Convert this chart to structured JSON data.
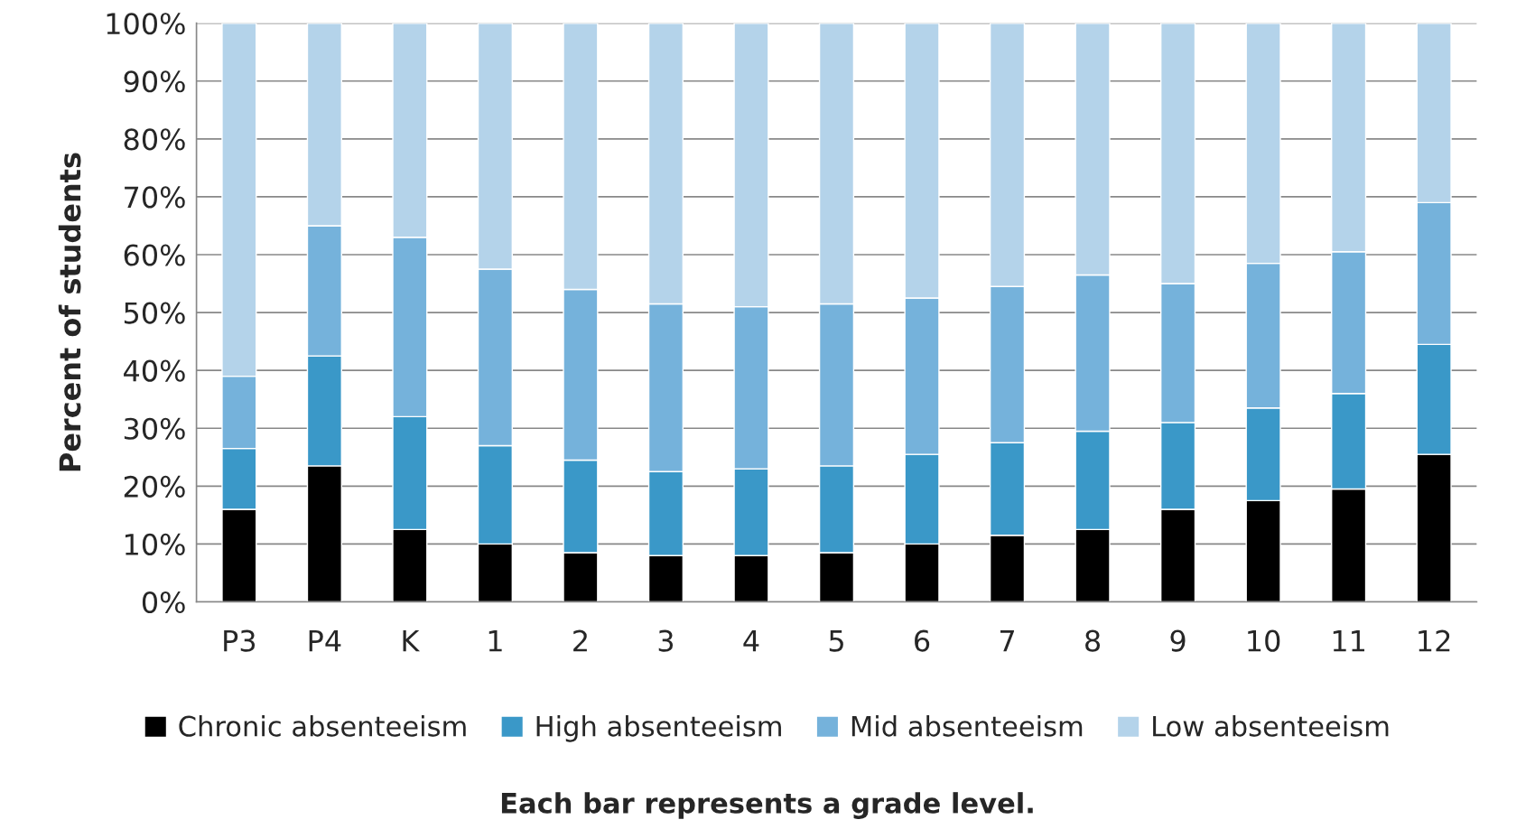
{
  "chart_data": {
    "type": "bar",
    "stacked": true,
    "ylabel": "Percent of students",
    "categories": [
      "P3",
      "P4",
      "K",
      "1",
      "2",
      "3",
      "4",
      "5",
      "6",
      "7",
      "8",
      "9",
      "10",
      "11",
      "12"
    ],
    "series": [
      {
        "name": "Chronic absenteeism",
        "color": "#000000",
        "values": [
          16,
          23.5,
          12.5,
          10,
          8.5,
          8,
          8,
          8.5,
          10,
          11.5,
          12.5,
          16,
          17.5,
          19.5,
          25.5
        ]
      },
      {
        "name": "High absenteeism",
        "color": "#3a98c8",
        "values": [
          10.5,
          19,
          19.5,
          17,
          16,
          14.5,
          15,
          15,
          15.5,
          16,
          17,
          15,
          16,
          16.5,
          19
        ]
      },
      {
        "name": "Mid absenteeism",
        "color": "#75b2db",
        "values": [
          12.5,
          22.5,
          31,
          30.5,
          29.5,
          29,
          28,
          28,
          27,
          27,
          27,
          24,
          25,
          24.5,
          24.5
        ]
      },
      {
        "name": "Low absenteeism",
        "color": "#b4d3ea",
        "values": [
          61,
          35,
          37,
          42.5,
          46,
          48.5,
          49,
          48.5,
          47.5,
          45.5,
          43.5,
          45,
          41.5,
          39.5,
          31
        ]
      }
    ],
    "ylim": [
      0,
      100
    ],
    "yticks": [
      {
        "value": 0,
        "label": "0%"
      },
      {
        "value": 10,
        "label": "10%"
      },
      {
        "value": 20,
        "label": "20%"
      },
      {
        "value": 30,
        "label": "30%"
      },
      {
        "value": 40,
        "label": "40%"
      },
      {
        "value": 50,
        "label": "50%"
      },
      {
        "value": 60,
        "label": "60%"
      },
      {
        "value": 70,
        "label": "70%"
      },
      {
        "value": 80,
        "label": "80%"
      },
      {
        "value": 90,
        "label": "90%"
      },
      {
        "value": 100,
        "label": "100%"
      }
    ],
    "grid": "y",
    "legend": "bottom",
    "annotations": [
      "Each bar represents a grade level."
    ]
  }
}
